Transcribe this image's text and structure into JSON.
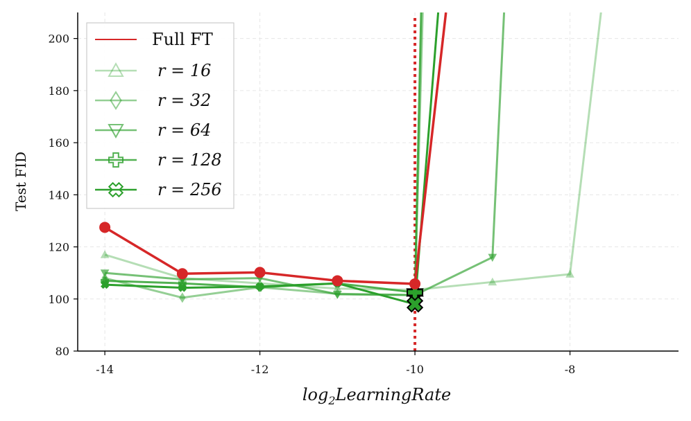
{
  "chart_data": {
    "type": "line",
    "xlabel": "log2LearningRate",
    "xlabel_main": "log",
    "xlabel_sub": "2",
    "xlabel_rest": "LearningRate",
    "ylabel": "Test FID",
    "xlim": [
      -14.35,
      -6.6
    ],
    "ylim": [
      80,
      210
    ],
    "xticks": [
      -14,
      -12,
      -10,
      -8
    ],
    "yticks": [
      80,
      100,
      120,
      140,
      160,
      180,
      200
    ],
    "grid": true,
    "legend_position": "top-left",
    "vline": {
      "x": -10,
      "color": "#d62728",
      "style": "dotted"
    },
    "series": [
      {
        "name": "Full FT",
        "legend_label": "Full FT",
        "color": "#d62728",
        "opacity": 1.0,
        "marker": "circle",
        "x": [
          -14,
          -13,
          -12,
          -11,
          -10,
          -9.6
        ],
        "y": [
          127.5,
          109.7,
          110.2,
          107,
          105.8,
          210
        ]
      },
      {
        "name": "r=16",
        "legend_label": "r = 16",
        "color": "#2ca02c",
        "opacity": 0.35,
        "marker": "triangle-up",
        "x": [
          -14,
          -13,
          -12,
          -11,
          -10,
          -9,
          -8,
          -7.6
        ],
        "y": [
          117,
          108,
          106,
          104,
          103.5,
          106.5,
          109.5,
          210
        ]
      },
      {
        "name": "r=32",
        "legend_label": "r = 32",
        "color": "#2ca02c",
        "opacity": 0.5,
        "marker": "diamond",
        "x": [
          -14,
          -13,
          -12,
          -11,
          -10,
          -9.9
        ],
        "y": [
          108,
          100.5,
          104.5,
          102,
          101.5,
          210
        ]
      },
      {
        "name": "r=64",
        "legend_label": "r = 64",
        "color": "#2ca02c",
        "opacity": 0.65,
        "marker": "triangle-down",
        "x": [
          -14,
          -13,
          -12,
          -11,
          -10,
          -9,
          -8.85
        ],
        "y": [
          110,
          107.5,
          108,
          101.8,
          101.5,
          116,
          210
        ]
      },
      {
        "name": "r=128",
        "legend_label": "r = 128",
        "color": "#2ca02c",
        "opacity": 0.82,
        "marker": "plus",
        "x": [
          -14,
          -13,
          -12,
          -11,
          -10,
          -9.92
        ],
        "y": [
          107,
          106,
          104.5,
          106,
          102.5,
          210
        ]
      },
      {
        "name": "r=256",
        "legend_label": "r = 256",
        "color": "#2ca02c",
        "opacity": 1.0,
        "marker": "x",
        "x": [
          -14,
          -13,
          -12,
          -11,
          -10,
          -9.7
        ],
        "y": [
          105.5,
          104.3,
          104.8,
          106,
          98,
          210
        ]
      }
    ]
  }
}
